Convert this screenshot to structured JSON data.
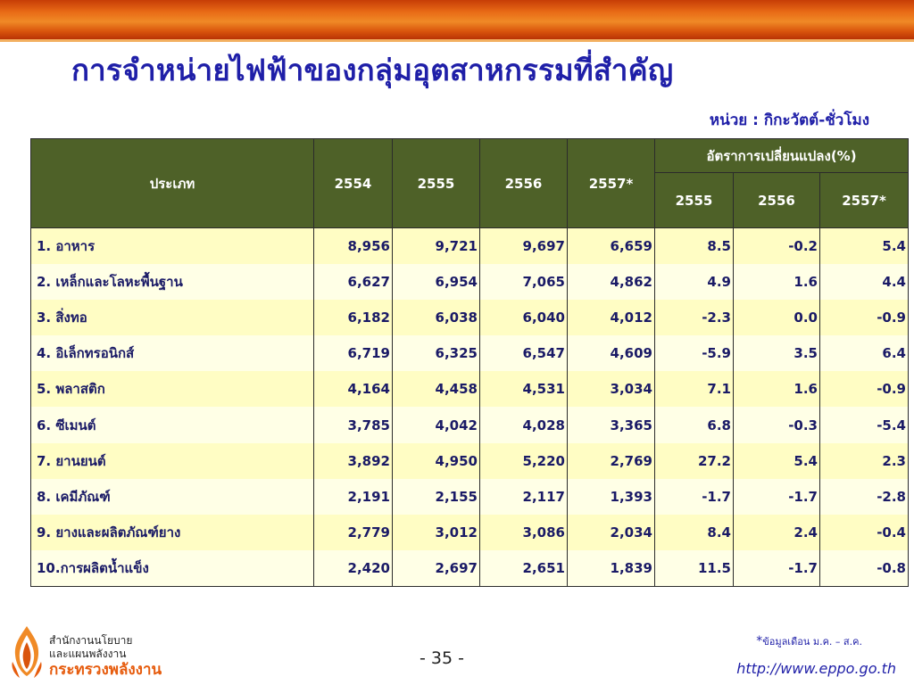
{
  "title": "การจำหน่ายไฟฟ้าของกลุ่มอุตสาหกรรมที่สำคัญ",
  "unit": "หน่วย : กิกะวัตต์-ชั่วโมง",
  "table": {
    "header_type": "ประเภท",
    "years": [
      "2554",
      "2555",
      "2556",
      "2557*"
    ],
    "change_group": "อัตราการเปลี่ยนแปลง(%)",
    "change_years": [
      "2555",
      "2556",
      "2557*"
    ],
    "rows": [
      {
        "name": "1. อาหาร",
        "v2554": "8,956",
        "v2555": "9,721",
        "v2556": "9,697",
        "v2557": "6,659",
        "c2555": "8.5",
        "c2556": "-0.2",
        "c2557": "5.4"
      },
      {
        "name": "2. เหล็กและโลหะพื้นฐาน",
        "v2554": "6,627",
        "v2555": "6,954",
        "v2556": "7,065",
        "v2557": "4,862",
        "c2555": "4.9",
        "c2556": "1.6",
        "c2557": "4.4"
      },
      {
        "name": "3. สิ่งทอ",
        "v2554": "6,182",
        "v2555": "6,038",
        "v2556": "6,040",
        "v2557": "4,012",
        "c2555": "-2.3",
        "c2556": "0.0",
        "c2557": "-0.9"
      },
      {
        "name": "4. อิเล็กทรอนิกส์",
        "v2554": "6,719",
        "v2555": "6,325",
        "v2556": "6,547",
        "v2557": "4,609",
        "c2555": "-5.9",
        "c2556": "3.5",
        "c2557": "6.4"
      },
      {
        "name": "5. พลาสติก",
        "v2554": "4,164",
        "v2555": "4,458",
        "v2556": "4,531",
        "v2557": "3,034",
        "c2555": "7.1",
        "c2556": "1.6",
        "c2557": "-0.9"
      },
      {
        "name": "6. ซีเมนต์",
        "v2554": "3,785",
        "v2555": "4,042",
        "v2556": "4,028",
        "v2557": "3,365",
        "c2555": "6.8",
        "c2556": "-0.3",
        "c2557": "-5.4"
      },
      {
        "name": "7. ยานยนต์",
        "v2554": "3,892",
        "v2555": "4,950",
        "v2556": "5,220",
        "v2557": "2,769",
        "c2555": "27.2",
        "c2556": "5.4",
        "c2557": "2.3"
      },
      {
        "name": "8. เคมีภัณฑ์",
        "v2554": "2,191",
        "v2555": "2,155",
        "v2556": "2,117",
        "v2557": "1,393",
        "c2555": "-1.7",
        "c2556": "-1.7",
        "c2557": "-2.8"
      },
      {
        "name": "9. ยางและผลิตภัณฑ์ยาง",
        "v2554": "2,779",
        "v2555": "3,012",
        "v2556": "3,086",
        "v2557": "2,034",
        "c2555": "8.4",
        "c2556": "2.4",
        "c2557": "-0.4"
      },
      {
        "name": "10.การผลิตน้ำแข็ง",
        "v2554": "2,420",
        "v2555": "2,697",
        "v2556": "2,651",
        "v2557": "1,839",
        "c2555": "11.5",
        "c2556": "-1.7",
        "c2557": "-0.8"
      }
    ]
  },
  "footer": {
    "org_line1": "สำนักงานนโยบาย",
    "org_line2": "และแผนพลังงาน",
    "org_line3": "กระทรวงพลังงาน",
    "page_number": "- 35 -",
    "footnote_star": "*",
    "footnote_text": "ข้อมูลเดือน ม.ค. – ส.ค.",
    "website": "http://www.eppo.go.th"
  },
  "colors": {
    "header_bg": "#4e6128",
    "row_odd": "#fffdc4",
    "row_even": "#ffffe6",
    "title": "#1f1fa8",
    "brand_orange": "#e65c0e"
  },
  "icons": {
    "logo": "flame-logo-icon"
  }
}
